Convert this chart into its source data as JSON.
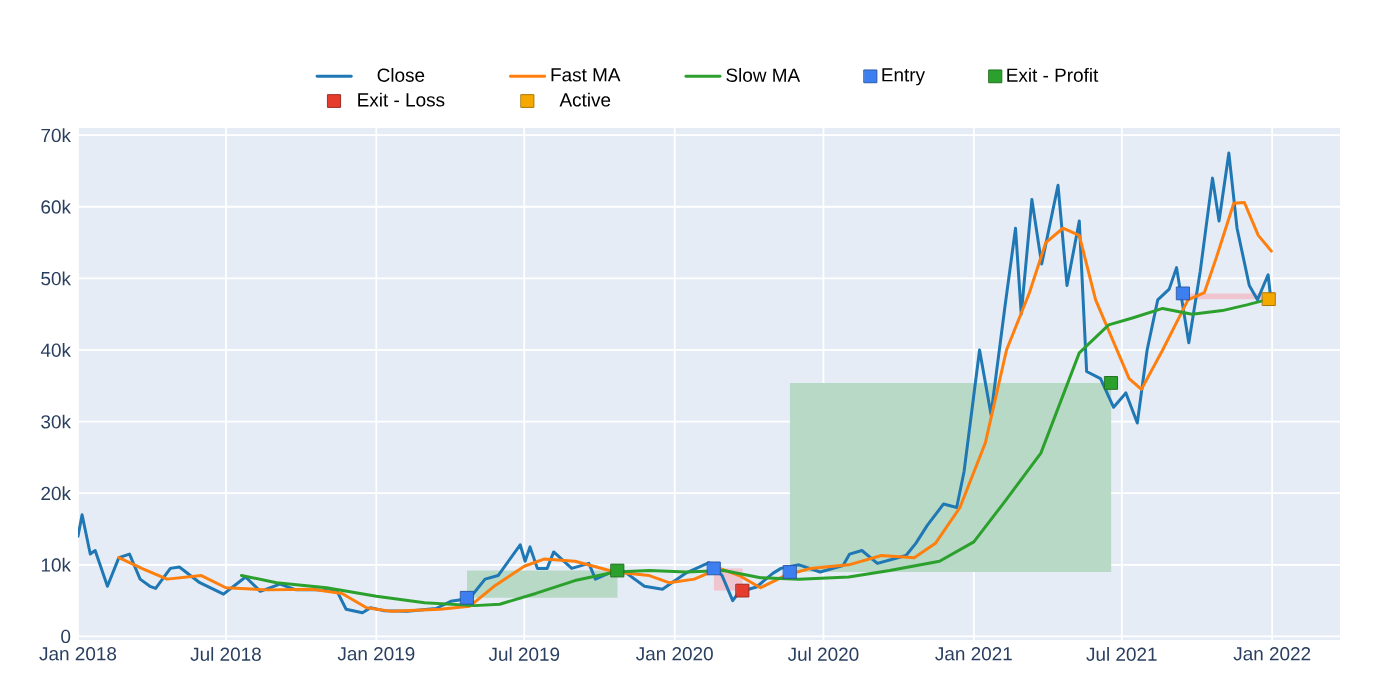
{
  "chart_data": {
    "type": "line",
    "xlim": [
      "2018-01-01",
      "2022-03-25"
    ],
    "ylim": [
      -500,
      71000
    ],
    "xticks": [
      {
        "value": "2018-01-01",
        "label": "Jan 2018"
      },
      {
        "value": "2018-07-01",
        "label": "Jul 2018"
      },
      {
        "value": "2019-01-01",
        "label": "Jan 2019"
      },
      {
        "value": "2019-07-01",
        "label": "Jul 2019"
      },
      {
        "value": "2020-01-01",
        "label": "Jan 2020"
      },
      {
        "value": "2020-07-01",
        "label": "Jul 2020"
      },
      {
        "value": "2021-01-01",
        "label": "Jan 2021"
      },
      {
        "value": "2021-07-01",
        "label": "Jul 2021"
      },
      {
        "value": "2022-01-01",
        "label": "Jan 2022"
      }
    ],
    "yticks": [
      0,
      {
        "value": 10000,
        "label": "10k"
      },
      {
        "value": 20000,
        "label": "20k"
      },
      {
        "value": 30000,
        "label": "30k"
      },
      {
        "value": 40000,
        "label": "40k"
      },
      {
        "value": 50000,
        "label": "50k"
      },
      {
        "value": 60000,
        "label": "60k"
      },
      {
        "value": 70000,
        "label": "70k"
      }
    ],
    "grid": true,
    "legend": "top",
    "series": [
      {
        "color": "#b7d9c5",
        "x": [
          "2019-04-22",
          "2019-10-23"
        ],
        "values": [
          null,
          null
        ],
        "lower": [
          5400,
          5400
        ],
        "upper": [
          9200,
          9200
        ]
      },
      {
        "color": "#efc6cf",
        "x": [
          "2020-02-18",
          "2020-03-24"
        ],
        "values": [
          null,
          null
        ],
        "lower": [
          6400,
          6400
        ],
        "upper": [
          9500,
          9500
        ]
      },
      {
        "color": "#b7d9c5",
        "x": [
          "2020-05-21",
          "2021-06-18"
        ],
        "values": [
          null,
          null
        ],
        "lower": [
          9000,
          9000
        ],
        "upper": [
          35400,
          35400
        ]
      },
      {
        "color": "#efc6cf",
        "x": [
          "2021-09-14",
          "2021-12-28"
        ],
        "values": [
          null,
          null
        ],
        "lower": [
          47100,
          47100
        ],
        "upper": [
          47900,
          47900
        ]
      },
      {
        "name": "Close",
        "type": "line",
        "color": "#1f77b4",
        "x": [
          "2018-01-01",
          "2018-01-06",
          "2018-01-16",
          "2018-01-22",
          "2018-02-06",
          "2018-02-20",
          "2018-03-05",
          "2018-03-18",
          "2018-03-30",
          "2018-04-06",
          "2018-04-24",
          "2018-05-05",
          "2018-05-30",
          "2018-06-28",
          "2018-07-25",
          "2018-08-12",
          "2018-09-05",
          "2018-09-25",
          "2018-10-20",
          "2018-11-14",
          "2018-11-25",
          "2018-12-15",
          "2018-12-25",
          "2019-01-10",
          "2019-02-08",
          "2019-03-15",
          "2019-04-02",
          "2019-04-25",
          "2019-05-14",
          "2019-05-30",
          "2019-06-26",
          "2019-07-02",
          "2019-07-08",
          "2019-07-17",
          "2019-07-29",
          "2019-08-06",
          "2019-08-28",
          "2019-09-18",
          "2019-09-26",
          "2019-10-26",
          "2019-11-25",
          "2019-12-17",
          "2020-01-14",
          "2020-02-12",
          "2020-02-28",
          "2020-03-12",
          "2020-03-20",
          "2020-04-10",
          "2020-04-30",
          "2020-05-10",
          "2020-06-01",
          "2020-06-27",
          "2020-07-25",
          "2020-08-02",
          "2020-08-17",
          "2020-09-05",
          "2020-10-10",
          "2020-10-22",
          "2020-11-05",
          "2020-11-25",
          "2020-12-11",
          "2020-12-20",
          "2021-01-08",
          "2021-01-22",
          "2021-02-08",
          "2021-02-21",
          "2021-02-28",
          "2021-03-13",
          "2021-03-25",
          "2021-04-14",
          "2021-04-25",
          "2021-05-10",
          "2021-05-19",
          "2021-06-05",
          "2021-06-21",
          "2021-07-06",
          "2021-07-20",
          "2021-08-01",
          "2021-08-14",
          "2021-08-28",
          "2021-09-06",
          "2021-09-21",
          "2021-10-05",
          "2021-10-20",
          "2021-10-28",
          "2021-11-09",
          "2021-11-19",
          "2021-12-04",
          "2021-12-14",
          "2021-12-27",
          "2021-12-31"
        ],
        "values": [
          14000,
          17000,
          11500,
          12000,
          7000,
          11000,
          11500,
          8000,
          7000,
          6700,
          9500,
          9700,
          7500,
          5900,
          8300,
          6300,
          7300,
          6500,
          6500,
          6300,
          3800,
          3300,
          4000,
          3600,
          3500,
          3900,
          4900,
          5300,
          8000,
          8500,
          12800,
          10500,
          12500,
          9500,
          9500,
          11800,
          9500,
          10200,
          8000,
          9500,
          7000,
          6600,
          8800,
          10300,
          8500,
          5000,
          6200,
          6900,
          8800,
          9500,
          10000,
          9000,
          9900,
          11500,
          12000,
          10200,
          11300,
          13000,
          15500,
          18500,
          18000,
          23000,
          40000,
          31000,
          46000,
          57000,
          45000,
          61000,
          52000,
          63000,
          49000,
          58000,
          37000,
          36000,
          32000,
          34000,
          29800,
          40000,
          47000,
          48500,
          51500,
          41000,
          51000,
          64000,
          58000,
          67500,
          57000,
          49000,
          47000,
          50500,
          46500
        ]
      },
      {
        "name": "Fast MA",
        "type": "line",
        "color": "#ff7f0e",
        "x": [
          "2018-02-20",
          "2018-03-20",
          "2018-04-20",
          "2018-06-01",
          "2018-07-01",
          "2018-08-20",
          "2018-10-15",
          "2018-11-20",
          "2018-12-20",
          "2019-01-20",
          "2019-03-20",
          "2019-04-25",
          "2019-05-25",
          "2019-07-01",
          "2019-07-25",
          "2019-09-01",
          "2019-10-20",
          "2019-12-01",
          "2019-12-25",
          "2020-01-25",
          "2020-02-25",
          "2020-03-20",
          "2020-04-15",
          "2020-05-15",
          "2020-06-15",
          "2020-08-01",
          "2020-09-10",
          "2020-10-20",
          "2020-11-15",
          "2020-12-15",
          "2021-01-15",
          "2021-02-10",
          "2021-03-10",
          "2021-03-30",
          "2021-04-20",
          "2021-05-10",
          "2021-05-30",
          "2021-07-10",
          "2021-07-25",
          "2021-08-20",
          "2021-09-20",
          "2021-10-10",
          "2021-10-25",
          "2021-11-15",
          "2021-11-28",
          "2021-12-15",
          "2021-12-31"
        ],
        "values": [
          11000,
          9500,
          8000,
          8500,
          6800,
          6500,
          6600,
          6000,
          4000,
          3500,
          3800,
          4200,
          7000,
          9800,
          10800,
          10500,
          9000,
          8500,
          7500,
          8000,
          9500,
          8500,
          6800,
          8500,
          9500,
          10000,
          11300,
          11000,
          13000,
          18000,
          27000,
          40000,
          48000,
          55000,
          57000,
          56000,
          47000,
          36000,
          34500,
          40000,
          47000,
          48000,
          53000,
          60500,
          60600,
          56000,
          53800
        ]
      },
      {
        "name": "Slow MA",
        "type": "line",
        "color": "#2ca02c",
        "x": [
          "2018-07-20",
          "2018-09-01",
          "2018-11-01",
          "2019-01-01",
          "2019-03-01",
          "2019-05-01",
          "2019-06-01",
          "2019-07-15",
          "2019-09-01",
          "2019-10-20",
          "2019-12-01",
          "2020-01-15",
          "2020-03-01",
          "2020-04-15",
          "2020-06-01",
          "2020-08-01",
          "2020-09-20",
          "2020-11-20",
          "2021-01-01",
          "2021-02-09",
          "2021-03-24",
          "2021-05-10",
          "2021-06-15",
          "2021-07-15",
          "2021-08-20",
          "2021-09-25",
          "2021-11-01",
          "2021-12-01",
          "2021-12-28"
        ],
        "values": [
          8500,
          7500,
          6800,
          5600,
          4700,
          4300,
          4500,
          6000,
          7800,
          9000,
          9200,
          9000,
          9200,
          8200,
          8000,
          8300,
          9200,
          10500,
          13200,
          19000,
          25600,
          39600,
          43500,
          44500,
          45800,
          45000,
          45500,
          46300,
          47100
        ]
      },
      {
        "name": "Entry",
        "type": "scatter",
        "marker": "square",
        "color": "#3d7ff0",
        "x": [
          "2019-04-22",
          "2020-02-18",
          "2020-05-21",
          "2021-09-14"
        ],
        "values": [
          5400,
          9500,
          9000,
          47900
        ]
      },
      {
        "name": "Exit - Profit",
        "type": "scatter",
        "marker": "square",
        "color": "#2ca02c",
        "x": [
          "2019-10-23",
          "2021-06-18"
        ],
        "values": [
          9200,
          35400
        ]
      },
      {
        "name": "Exit - Loss",
        "type": "scatter",
        "marker": "square",
        "color": "#e53c2e",
        "x": [
          "2020-03-24"
        ],
        "values": [
          6400
        ]
      },
      {
        "name": "Active",
        "type": "scatter",
        "marker": "square",
        "color": "#f5a800",
        "x": [
          "2021-12-28"
        ],
        "values": [
          47100
        ]
      }
    ]
  }
}
